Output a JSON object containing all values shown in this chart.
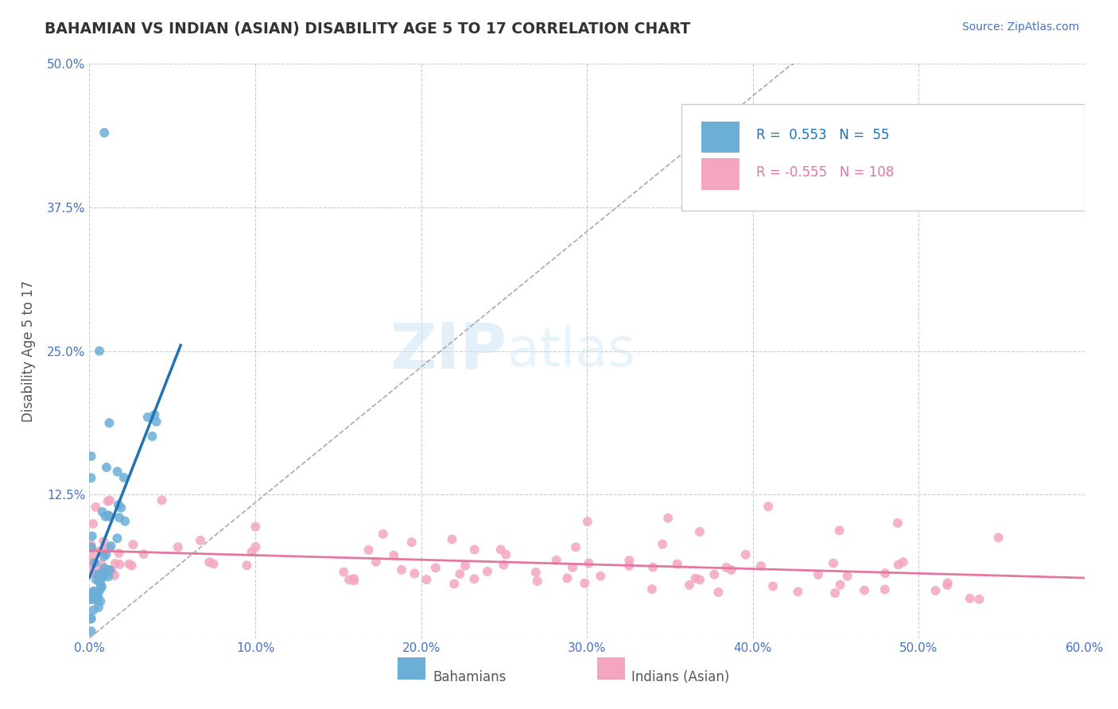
{
  "title": "BAHAMIAN VS INDIAN (ASIAN) DISABILITY AGE 5 TO 17 CORRELATION CHART",
  "source": "Source: ZipAtlas.com",
  "ylabel": "Disability Age 5 to 17",
  "xlim": [
    0.0,
    0.6
  ],
  "ylim": [
    0.0,
    0.5
  ],
  "xticks": [
    0.0,
    0.1,
    0.2,
    0.3,
    0.4,
    0.5,
    0.6
  ],
  "xticklabels": [
    "0.0%",
    "10.0%",
    "20.0%",
    "30.0%",
    "40.0%",
    "50.0%",
    "60.0%"
  ],
  "yticks": [
    0.0,
    0.125,
    0.25,
    0.375,
    0.5
  ],
  "yticklabels": [
    "",
    "12.5%",
    "25.0%",
    "37.5%",
    "50.0%"
  ],
  "blue_R": 0.553,
  "blue_N": 55,
  "pink_R": -0.555,
  "pink_N": 108,
  "blue_color": "#6baed6",
  "pink_color": "#f4a6c0",
  "blue_line_color": "#2171b5",
  "pink_line_color": "#e377a2",
  "legend_label_blue": "Bahamians",
  "legend_label_pink": "Indians (Asian)",
  "watermark_zip": "ZIP",
  "watermark_atlas": "atlas",
  "background_color": "#ffffff",
  "grid_color": "#cccccc",
  "title_color": "#333333",
  "source_color": "#4472c4",
  "axis_label_color": "#555555",
  "tick_color": "#4472c4"
}
